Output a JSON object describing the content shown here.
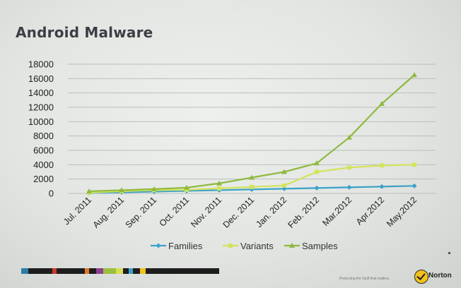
{
  "slide": {
    "title": "Android Malware",
    "footer_text": "Protecting the Stuff that matters.",
    "logo_text": "Norton"
  },
  "colors": {
    "families": "#3aa2c8",
    "variants": "#d3e35c",
    "samples": "#8fb93e",
    "grid": "#b9c0b9",
    "logo_check": "#f3c21b"
  },
  "icons": {
    "logo": "norton-check-icon"
  },
  "chart_data": {
    "type": "line",
    "title": "",
    "xlabel": "",
    "ylabel": "",
    "x": [
      "Jul. 2011",
      "Aug. 2011",
      "Sep. 2011",
      "Oct. 2011",
      "Nov. 2011",
      "Dec. 2011",
      "Jan. 2012",
      "Feb. 2012",
      "Mar.2012",
      "Apr.2012",
      "May.2012"
    ],
    "ylim": [
      0,
      18000
    ],
    "yticks": [
      "0",
      "2000",
      "4000",
      "6000",
      "8000",
      "10000",
      "12000",
      "14000",
      "16000",
      "18000"
    ],
    "grid": true,
    "legend_position": "bottom",
    "series": [
      {
        "name": "Families",
        "marker": "diamond",
        "values": [
          70,
          150,
          250,
          350,
          450,
          550,
          650,
          750,
          850,
          950,
          1050
        ]
      },
      {
        "name": "Variants",
        "marker": "square",
        "values": [
          100,
          300,
          450,
          500,
          700,
          900,
          1100,
          3000,
          3600,
          3900,
          4000
        ]
      },
      {
        "name": "Samples",
        "marker": "triangle",
        "values": [
          300,
          450,
          600,
          800,
          1400,
          2200,
          3000,
          4200,
          7800,
          12500,
          16500
        ]
      }
    ]
  }
}
